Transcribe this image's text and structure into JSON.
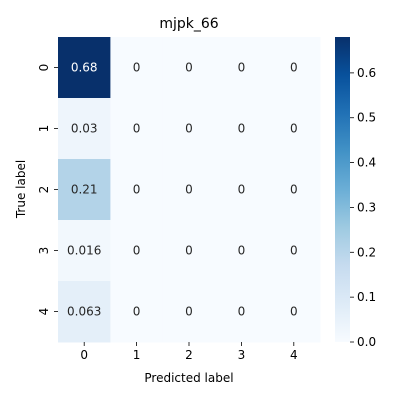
{
  "chart_data": {
    "type": "heatmap",
    "title": "mjpk_66",
    "xlabel": "Predicted label",
    "ylabel": "True label",
    "x_categories": [
      "0",
      "1",
      "2",
      "3",
      "4"
    ],
    "y_categories": [
      "0",
      "1",
      "2",
      "3",
      "4"
    ],
    "values": [
      [
        0.68,
        0,
        0,
        0,
        0
      ],
      [
        0.03,
        0,
        0,
        0,
        0
      ],
      [
        0.21,
        0,
        0,
        0,
        0
      ],
      [
        0.016,
        0,
        0,
        0,
        0
      ],
      [
        0.063,
        0,
        0,
        0,
        0
      ]
    ],
    "cell_labels": [
      [
        "0.68",
        "0",
        "0",
        "0",
        "0"
      ],
      [
        "0.03",
        "0",
        "0",
        "0",
        "0"
      ],
      [
        "0.21",
        "0",
        "0",
        "0",
        "0"
      ],
      [
        "0.016",
        "0",
        "0",
        "0",
        "0"
      ],
      [
        "0.063",
        "0",
        "0",
        "0",
        "0"
      ]
    ],
    "colormap": "Blues",
    "colorbar": {
      "range": [
        0.0,
        0.68
      ],
      "ticks": [
        0.0,
        0.1,
        0.2,
        0.3,
        0.4,
        0.5,
        0.6
      ],
      "tick_labels": [
        "0.0",
        "0.1",
        "0.2",
        "0.3",
        "0.4",
        "0.5",
        "0.6"
      ]
    }
  }
}
